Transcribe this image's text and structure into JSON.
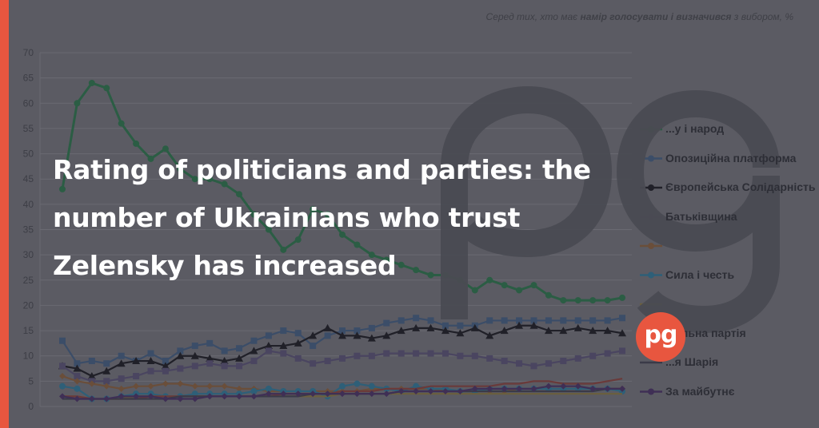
{
  "subtitle": {
    "prefix": "Серед тих, хто має ",
    "bold": "намір голосувати і визначився",
    "suffix": " з вибором, %"
  },
  "headline": "Rating of politicians and parties: the number of Ukrainians who trust Zelensky has increased",
  "logo": {
    "text": "pg",
    "icon": "pg-logo-icon",
    "watermark_icon": "pg-watermark-icon"
  },
  "colors": {
    "background": "#5b5b63",
    "accent": "#e8563f",
    "grid": "#6a6a72",
    "axis_text": "#3d3e46"
  },
  "legend": [
    {
      "label": "...у і народ",
      "color": "#2b5d44",
      "marker": "circle"
    },
    {
      "label": "Опозиційна платформа",
      "color": "#3b4d68",
      "marker": "square"
    },
    {
      "label": "Європейська Солідарність",
      "color": "#202028",
      "marker": "triangle"
    },
    {
      "label": "Батьківщина",
      "color": "#4a4560",
      "marker": "square"
    },
    {
      "label": "",
      "color": "#6a4e3a",
      "marker": "diamond"
    },
    {
      "label": "Сила і честь",
      "color": "#2e5f78",
      "marker": "circle"
    },
    {
      "label": "",
      "color": "#6b5f3d",
      "marker": "dash"
    },
    {
      "label": "...альна партія",
      "color": "#6a3a3a",
      "marker": "dash"
    },
    {
      "label": "...я Шарія",
      "color": "#3a3a48",
      "marker": "dash"
    },
    {
      "label": "За майбутнє",
      "color": "#3f2f55",
      "marker": "diamond"
    }
  ],
  "chart_data": {
    "type": "line",
    "ylim": [
      0,
      70
    ],
    "yticks": [
      0,
      5,
      10,
      15,
      20,
      25,
      30,
      35,
      40,
      45,
      50,
      55,
      60,
      65,
      70
    ],
    "grid": true,
    "x": [
      1,
      2,
      3,
      4,
      5,
      6,
      7,
      8,
      9,
      10,
      11,
      12,
      13,
      14,
      15,
      16,
      17,
      18,
      19,
      20,
      21,
      22,
      23,
      24,
      25,
      26,
      27,
      28,
      29,
      30,
      31,
      32,
      33,
      34,
      35,
      36,
      37,
      38,
      39
    ],
    "series": [
      {
        "color": "#2b5d44",
        "marker": "circle",
        "values": [
          43,
          60,
          64,
          63,
          56,
          52,
          49,
          51,
          47,
          45,
          45,
          44,
          42,
          38,
          35,
          31,
          33,
          39,
          38,
          34,
          32,
          30,
          29,
          28,
          27,
          26,
          26,
          25,
          23,
          25,
          24,
          23,
          24,
          22,
          21,
          21,
          21,
          21,
          21.5
        ]
      },
      {
        "color": "#3b4d68",
        "marker": "square",
        "values": [
          13,
          8.5,
          9,
          8.5,
          10,
          9,
          10.5,
          9,
          11,
          12,
          12.5,
          11,
          11.5,
          13,
          14,
          15,
          14.5,
          12,
          14,
          15,
          15,
          15.5,
          16.5,
          17,
          17.5,
          17,
          16,
          16,
          16,
          17,
          17,
          17,
          17,
          17,
          17,
          17,
          17,
          17,
          17.5
        ]
      },
      {
        "color": "#202028",
        "marker": "triangle",
        "values": [
          8,
          7.5,
          6,
          7,
          8.5,
          9,
          9,
          8,
          10,
          10,
          9.5,
          9,
          9.5,
          11,
          12,
          12,
          12.5,
          14,
          15.5,
          14,
          14,
          13.5,
          14,
          15,
          15.5,
          15.5,
          15,
          14.5,
          15.5,
          14,
          15,
          16,
          16,
          15,
          15,
          15.5,
          15,
          15,
          14.5
        ]
      },
      {
        "color": "#4a4560",
        "marker": "square",
        "values": [
          8,
          6,
          5,
          5,
          5.5,
          6,
          7,
          7,
          7.5,
          8,
          8.5,
          8,
          8,
          9,
          11,
          10.5,
          9.5,
          8.5,
          9,
          9.5,
          10,
          10,
          10.5,
          10.5,
          10.5,
          10.5,
          10.5,
          10,
          10,
          9.5,
          9,
          8.5,
          8,
          8.5,
          9,
          9.5,
          10,
          10.5,
          11
        ]
      },
      {
        "color": "#6a4e3a",
        "marker": "diamond",
        "values": [
          6,
          5,
          4.5,
          4,
          3.5,
          4,
          4,
          4.5,
          4.5,
          4,
          4,
          4,
          3.5,
          3.5,
          3,
          3,
          3,
          3,
          3,
          3,
          3,
          3.5,
          3.5,
          3.5,
          3.5,
          3.5,
          3,
          3,
          3,
          3,
          3,
          3.5,
          3.5,
          3.5,
          3.5,
          3.5,
          3.5,
          3.5,
          3.5
        ]
      },
      {
        "color": "#2e5f78",
        "marker": "circle",
        "values": [
          4,
          3.5,
          1.5,
          1.5,
          2,
          2.5,
          2.5,
          2,
          2,
          2.5,
          2.5,
          2.5,
          2.5,
          3,
          3.5,
          3,
          3,
          3,
          2,
          4,
          4.5,
          4,
          3.5,
          3,
          4,
          3.5,
          3.5,
          3,
          3,
          3.5,
          3.5,
          3.5,
          3.5,
          3.5,
          3.5,
          3.5,
          3.5,
          3.5,
          3
        ]
      },
      {
        "color": "#6b5f3d",
        "marker": "dash",
        "values": [
          2,
          2,
          1.5,
          1.5,
          1.5,
          2,
          2,
          2,
          2,
          2,
          2,
          2,
          2,
          2,
          2,
          2,
          2,
          2,
          2,
          2.5,
          2.5,
          2.5,
          2.5,
          2.5,
          2.5,
          2.5,
          2.5,
          2.5,
          2.5,
          2.5,
          2.5,
          2.5,
          2.5,
          2.5,
          2.5,
          2.5,
          2.5,
          2.5,
          2.5
        ]
      },
      {
        "color": "#6a3a3a",
        "marker": "dash",
        "values": [
          2,
          2,
          1.5,
          1.5,
          1.5,
          1.5,
          2,
          2,
          2,
          2,
          2,
          2,
          2,
          2,
          2,
          2.5,
          2.5,
          2.5,
          2.5,
          3,
          3,
          3,
          3.5,
          3.5,
          3.5,
          4,
          4,
          4,
          4,
          4,
          4.5,
          4.5,
          5,
          5,
          4.5,
          4.5,
          4.5,
          5,
          5.5
        ]
      },
      {
        "color": "#3a3a48",
        "marker": "dash",
        "values": [
          1.5,
          1.5,
          1.5,
          1.5,
          1.5,
          1.5,
          1.5,
          1.5,
          2,
          2,
          2,
          2,
          2,
          2,
          2,
          2,
          2,
          2.5,
          2.5,
          2.5,
          2.5,
          2.5,
          2.5,
          3,
          3,
          3,
          3,
          3,
          3,
          3,
          3,
          3,
          3,
          3,
          3,
          3,
          3,
          3.5,
          3.5
        ]
      },
      {
        "color": "#3f2f55",
        "marker": "diamond",
        "values": [
          2,
          1.5,
          1.5,
          1.5,
          2,
          2,
          2,
          1.5,
          1.5,
          1.5,
          2,
          2,
          2,
          2,
          2.5,
          2.5,
          2.5,
          2.5,
          2.5,
          2.5,
          2.5,
          2.5,
          2.5,
          3,
          3,
          3,
          3,
          3,
          3.5,
          3.5,
          3.5,
          3.5,
          3.5,
          4,
          4,
          4,
          3.5,
          3.5,
          3.5
        ]
      }
    ]
  }
}
